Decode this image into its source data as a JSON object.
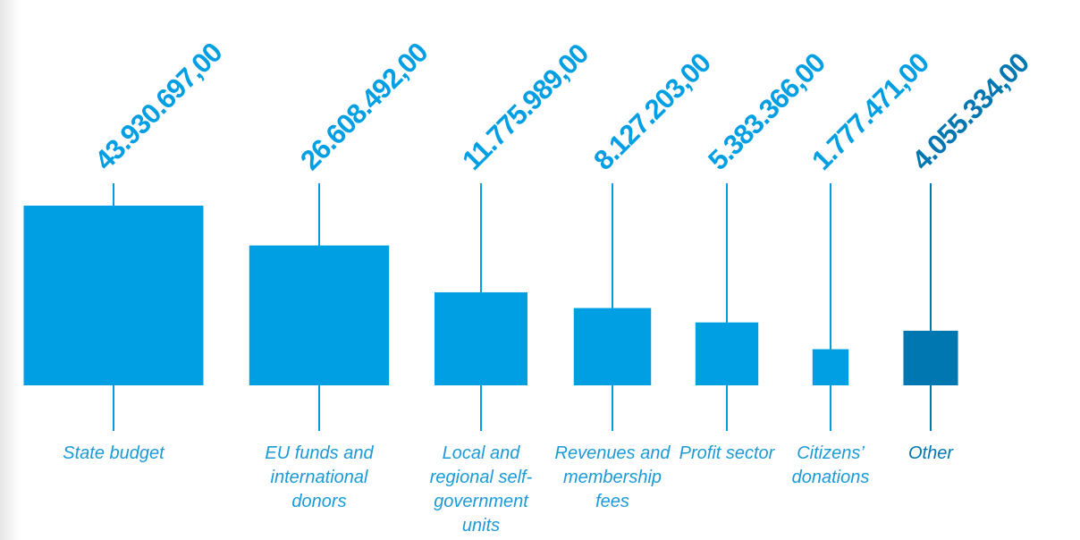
{
  "chart_data": {
    "type": "square",
    "categories": [
      "State budget",
      "EU funds and international donors",
      "Local and regional self-government units",
      "Revenues and membership fees",
      "Profit sector",
      "Citizens’ donations",
      "Other"
    ],
    "values": [
      43930697,
      26608492,
      11775989,
      8127203,
      5383366,
      1777471,
      4055334
    ],
    "value_labels": [
      "43.930.697,00",
      "26.608.492,00",
      "11.775.989,00",
      "8.127.203,00",
      "5.383.366,00",
      "1.777.471,00",
      "4.055.334,00"
    ],
    "colors": [
      "#009fe3",
      "#009fe3",
      "#009fe3",
      "#009fe3",
      "#009fe3",
      "#009fe3",
      "#0077b0"
    ]
  }
}
